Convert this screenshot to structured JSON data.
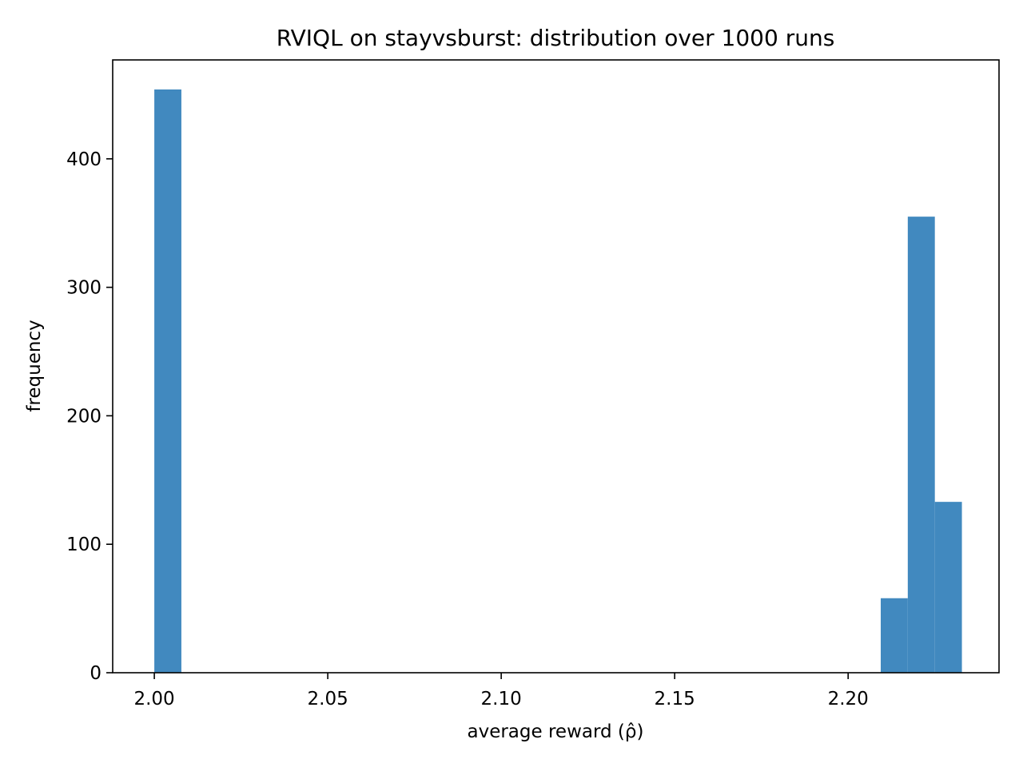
{
  "chart_data": {
    "type": "bar",
    "title": "RVIQL on stayvsburst: distribution over 1000 runs",
    "xlabel": "average reward (ρ̂)",
    "ylabel": "frequency",
    "xlim": [
      1.988,
      2.2435
    ],
    "ylim": [
      0,
      477
    ],
    "x_ticks": [
      2.0,
      2.05,
      2.1,
      2.15,
      2.2
    ],
    "x_tick_labels": [
      "2.00",
      "2.05",
      "2.10",
      "2.15",
      "2.20"
    ],
    "y_ticks": [
      0,
      100,
      200,
      300,
      400
    ],
    "y_tick_labels": [
      "0",
      "100",
      "200",
      "300",
      "400"
    ],
    "grid": false,
    "bar_color": "#4189bf",
    "bins": [
      {
        "x0": 2.0,
        "x1": 2.0078,
        "count": 454
      },
      {
        "x0": 2.2094,
        "x1": 2.2172,
        "count": 58
      },
      {
        "x0": 2.2172,
        "x1": 2.225,
        "count": 355
      },
      {
        "x0": 2.225,
        "x1": 2.2328,
        "count": 133
      }
    ]
  }
}
